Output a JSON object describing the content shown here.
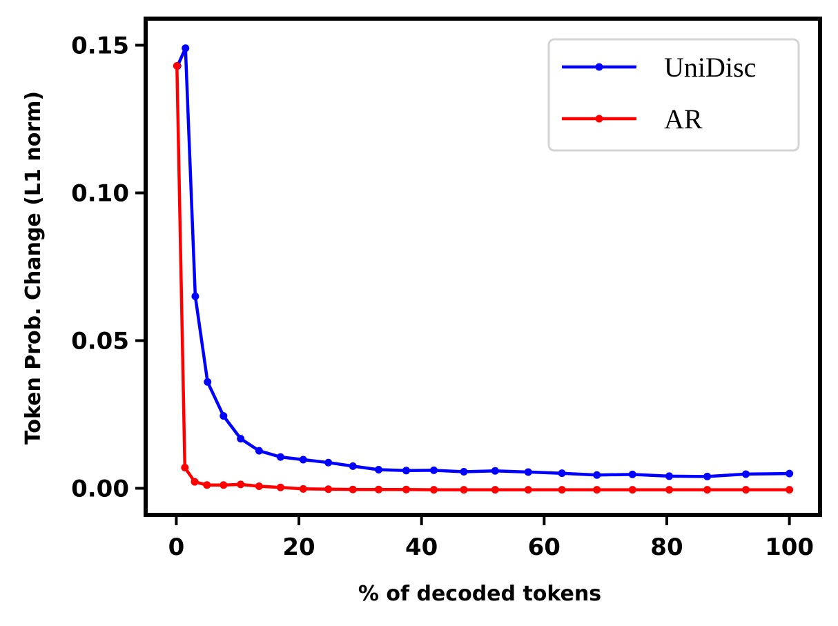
{
  "chart_data": {
    "type": "line",
    "title": "",
    "xlabel": "% of decoded tokens",
    "ylabel": "Token Prob. Change (L1 norm)",
    "xlim": [
      -5,
      105
    ],
    "ylim": [
      -0.009,
      0.159
    ],
    "xticks": [
      0,
      20,
      40,
      60,
      80,
      100
    ],
    "xtick_labels": [
      "0",
      "20",
      "40",
      "60",
      "80",
      "100"
    ],
    "yticks": [
      0.0,
      0.05,
      0.1,
      0.15
    ],
    "ytick_labels": [
      "0.00",
      "0.05",
      "0.10",
      "0.15"
    ],
    "grid": false,
    "legend_position": "top-right",
    "series": [
      {
        "name": "UniDisc",
        "color": "#0000ff",
        "x": [
          0.2,
          1.5,
          3.1,
          5.1,
          7.7,
          10.5,
          13.5,
          17.0,
          20.7,
          24.8,
          28.8,
          33.0,
          37.5,
          42.0,
          46.9,
          52.0,
          57.4,
          62.9,
          68.6,
          74.4,
          80.4,
          86.6,
          92.9,
          100
        ],
        "values": [
          0.143,
          0.149,
          0.065,
          0.036,
          0.0245,
          0.0168,
          0.0127,
          0.0106,
          0.0097,
          0.0087,
          0.0075,
          0.0063,
          0.006,
          0.0061,
          0.0056,
          0.0059,
          0.0055,
          0.0051,
          0.0045,
          0.0047,
          0.0041,
          0.004,
          0.0048,
          0.005
        ]
      },
      {
        "name": "AR",
        "color": "#ff0000",
        "x": [
          0.1,
          1.4,
          3.0,
          5.0,
          7.7,
          10.5,
          13.5,
          17.0,
          20.7,
          24.8,
          28.8,
          33.0,
          37.5,
          42.0,
          46.9,
          52.0,
          57.4,
          62.9,
          68.6,
          74.4,
          80.4,
          86.6,
          92.9,
          100
        ],
        "values": [
          0.143,
          0.007,
          0.0022,
          0.0011,
          0.0011,
          0.0013,
          0.0007,
          0.0003,
          -0.0002,
          -0.0003,
          -0.0004,
          -0.0004,
          -0.0004,
          -0.0005,
          -0.0005,
          -0.0005,
          -0.0005,
          -0.0005,
          -0.0005,
          -0.0005,
          -0.0005,
          -0.0005,
          -0.0005,
          -0.0005
        ]
      }
    ]
  }
}
